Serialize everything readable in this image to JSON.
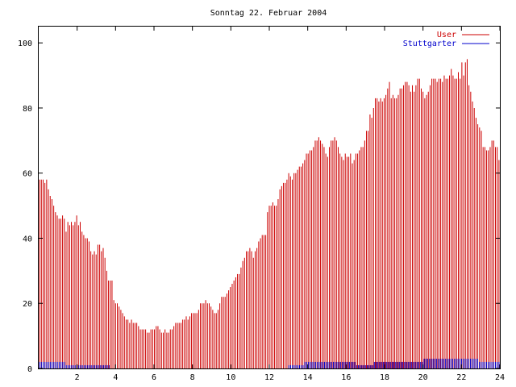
{
  "chart_data": {
    "type": "bar",
    "title": "Sonntag 22. Februar 2004",
    "xlabel": "",
    "ylabel": "",
    "xlim": [
      0,
      24
    ],
    "ylim": [
      0,
      105
    ],
    "x_ticks": [
      {
        "value": 2,
        "label": "2"
      },
      {
        "value": 4,
        "label": "4"
      },
      {
        "value": 6,
        "label": "6"
      },
      {
        "value": 8,
        "label": "8"
      },
      {
        "value": 10,
        "label": "10"
      },
      {
        "value": 12,
        "label": "12"
      },
      {
        "value": 14,
        "label": "14"
      },
      {
        "value": 16,
        "label": "16"
      },
      {
        "value": 18,
        "label": "18"
      },
      {
        "value": 20,
        "label": "20"
      },
      {
        "value": 22,
        "label": "22"
      },
      {
        "value": 24,
        "label": "24"
      }
    ],
    "y_ticks": [
      {
        "value": 0,
        "label": "0"
      },
      {
        "value": 20,
        "label": "20"
      },
      {
        "value": 40,
        "label": "40"
      },
      {
        "value": 60,
        "label": "60"
      },
      {
        "value": 80,
        "label": "80"
      },
      {
        "value": 100,
        "label": "100"
      }
    ],
    "grid": false,
    "legend_position": "top-right",
    "sample_step_hours": 0.0833,
    "series": [
      {
        "name": "User",
        "style": "impulses",
        "color": "#cc0000",
        "values": [
          58,
          58,
          58,
          57,
          58,
          55,
          53,
          52,
          50,
          48,
          47,
          46,
          46,
          47,
          46,
          42,
          45,
          44,
          45,
          44,
          45,
          47,
          44,
          45,
          42,
          41,
          40,
          40,
          39,
          36,
          35,
          36,
          35,
          38,
          38,
          36,
          37,
          34,
          30,
          27,
          27,
          27,
          21,
          20,
          20,
          19,
          18,
          17,
          16,
          15,
          15,
          14,
          15,
          14,
          14,
          14,
          13,
          12,
          12,
          12,
          12,
          11,
          11,
          12,
          12,
          12,
          13,
          13,
          12,
          11,
          11,
          12,
          11,
          11,
          12,
          12,
          13,
          14,
          14,
          14,
          14,
          15,
          15,
          16,
          15,
          16,
          17,
          17,
          17,
          17,
          18,
          20,
          20,
          20,
          21,
          20,
          20,
          19,
          18,
          17,
          17,
          18,
          20,
          22,
          22,
          22,
          23,
          24,
          25,
          26,
          27,
          28,
          29,
          29,
          31,
          33,
          34,
          36,
          36,
          37,
          36,
          34,
          36,
          37,
          39,
          40,
          41,
          41,
          41,
          48,
          50,
          50,
          51,
          50,
          50,
          52,
          55,
          56,
          57,
          57,
          58,
          60,
          59,
          58,
          60,
          60,
          61,
          62,
          62,
          63,
          64,
          66,
          66,
          67,
          67,
          68,
          70,
          70,
          71,
          70,
          69,
          68,
          66,
          65,
          68,
          70,
          70,
          71,
          70,
          68,
          66,
          65,
          64,
          66,
          65,
          65,
          66,
          63,
          64,
          66,
          66,
          67,
          68,
          68,
          70,
          73,
          73,
          78,
          77,
          80,
          83,
          83,
          82,
          83,
          82,
          83,
          84,
          86,
          88,
          83,
          84,
          83,
          83,
          84,
          86,
          86,
          87,
          88,
          88,
          87,
          85,
          87,
          85,
          87,
          89,
          89,
          86,
          85,
          83,
          84,
          85,
          87,
          89,
          89,
          89,
          88,
          89,
          89,
          88,
          90,
          89,
          89,
          90,
          92,
          90,
          89,
          89,
          91,
          89,
          94,
          90,
          94,
          95,
          87,
          85,
          82,
          80,
          77,
          75,
          74,
          73,
          68,
          68,
          67,
          67,
          68,
          70,
          70,
          68,
          68,
          64
        ]
      },
      {
        "name": "Stuttgarter",
        "style": "impulses",
        "color": "#0000cc",
        "values": [
          2,
          2,
          2,
          2,
          2,
          2,
          2,
          2,
          2,
          2,
          2,
          2,
          2,
          2,
          2,
          1,
          1,
          1,
          1,
          1,
          1,
          1,
          1,
          1,
          1,
          1,
          1,
          1,
          1,
          1,
          1,
          1,
          1,
          1,
          1,
          1,
          1,
          1,
          1,
          1,
          0,
          0,
          0,
          0,
          0,
          0,
          0,
          0,
          0,
          0,
          0,
          0,
          0,
          0,
          0,
          0,
          0,
          0,
          0,
          0,
          0,
          0,
          0,
          0,
          0,
          0,
          0,
          0,
          0,
          0,
          0,
          0,
          0,
          0,
          0,
          0,
          0,
          0,
          0,
          0,
          0,
          0,
          0,
          0,
          0,
          0,
          0,
          0,
          0,
          0,
          0,
          0,
          0,
          0,
          0,
          0,
          0,
          0,
          0,
          0,
          0,
          0,
          0,
          0,
          0,
          0,
          0,
          0,
          0,
          0,
          0,
          0,
          0,
          0,
          0,
          0,
          0,
          0,
          0,
          0,
          0,
          0,
          0,
          0,
          0,
          0,
          0,
          0,
          0,
          0,
          0,
          0,
          0,
          0,
          0,
          0,
          0,
          0,
          0,
          0,
          1,
          1,
          1,
          1,
          1,
          1,
          1,
          1,
          1,
          2,
          2,
          2,
          2,
          2,
          2,
          2,
          2,
          2,
          2,
          2,
          2,
          2,
          2,
          2,
          2,
          2,
          2,
          2,
          2,
          2,
          2,
          2,
          2,
          2,
          2,
          2,
          2,
          2,
          1,
          1,
          1,
          1,
          1,
          1,
          1,
          1,
          1,
          1,
          2,
          2,
          2,
          2,
          2,
          2,
          2,
          2,
          2,
          2,
          2,
          2,
          2,
          2,
          2,
          2,
          2,
          2,
          2,
          2,
          2,
          2,
          2,
          2,
          2,
          2,
          2,
          2,
          3,
          3,
          3,
          3,
          3,
          3,
          3,
          3,
          3,
          3,
          3,
          3,
          3,
          3,
          3,
          3,
          3,
          3,
          3,
          3,
          3,
          3,
          3,
          3,
          3,
          3,
          3,
          3,
          3,
          3,
          3,
          2,
          2,
          2,
          2,
          2,
          2,
          2,
          2,
          2,
          2,
          2,
          2
        ]
      }
    ]
  }
}
